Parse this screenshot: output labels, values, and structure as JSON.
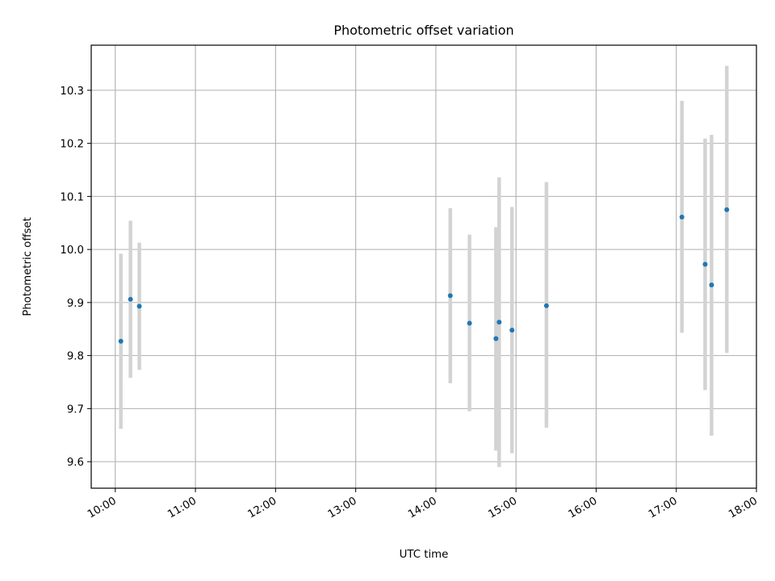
{
  "chart_data": {
    "type": "scatter",
    "title": "Photometric offset variation",
    "xlabel": "UTC time",
    "ylabel": "Photometric offset",
    "x_unit": "hours (UTC)",
    "xlim": [
      9.7,
      18.0
    ],
    "ylim": [
      9.55,
      10.385
    ],
    "grid": true,
    "x_ticks": [
      {
        "value": 10,
        "label": "10:00"
      },
      {
        "value": 11,
        "label": "11:00"
      },
      {
        "value": 12,
        "label": "12:00"
      },
      {
        "value": 13,
        "label": "13:00"
      },
      {
        "value": 14,
        "label": "14:00"
      },
      {
        "value": 15,
        "label": "15:00"
      },
      {
        "value": 16,
        "label": "16:00"
      },
      {
        "value": 17,
        "label": "17:00"
      },
      {
        "value": 18,
        "label": "18:00"
      }
    ],
    "y_ticks": [
      {
        "value": 9.6,
        "label": "9.6"
      },
      {
        "value": 9.7,
        "label": "9.7"
      },
      {
        "value": 9.8,
        "label": "9.8"
      },
      {
        "value": 9.9,
        "label": "9.9"
      },
      {
        "value": 10.0,
        "label": "10.0"
      },
      {
        "value": 10.1,
        "label": "10.1"
      },
      {
        "value": 10.2,
        "label": "10.2"
      },
      {
        "value": 10.3,
        "label": "10.3"
      }
    ],
    "colors": {
      "marker": "#1f77b4",
      "errorbar": "#d3d3d3",
      "grid": "#b0b0b0"
    },
    "points": [
      {
        "x": 10.07,
        "y": 9.827,
        "yerr_low": 9.662,
        "yerr_high": 9.992
      },
      {
        "x": 10.19,
        "y": 9.906,
        "yerr_low": 9.758,
        "yerr_high": 10.054
      },
      {
        "x": 10.3,
        "y": 9.893,
        "yerr_low": 9.773,
        "yerr_high": 10.013
      },
      {
        "x": 14.18,
        "y": 9.913,
        "yerr_low": 9.748,
        "yerr_high": 10.078
      },
      {
        "x": 14.42,
        "y": 9.861,
        "yerr_low": 9.695,
        "yerr_high": 10.028
      },
      {
        "x": 14.75,
        "y": 9.832,
        "yerr_low": 9.621,
        "yerr_high": 10.042
      },
      {
        "x": 14.79,
        "y": 9.863,
        "yerr_low": 9.59,
        "yerr_high": 10.136
      },
      {
        "x": 14.95,
        "y": 9.848,
        "yerr_low": 9.616,
        "yerr_high": 10.08
      },
      {
        "x": 15.38,
        "y": 9.894,
        "yerr_low": 9.664,
        "yerr_high": 10.127
      },
      {
        "x": 17.07,
        "y": 10.061,
        "yerr_low": 9.843,
        "yerr_high": 10.28
      },
      {
        "x": 17.36,
        "y": 9.972,
        "yerr_low": 9.735,
        "yerr_high": 10.209
      },
      {
        "x": 17.44,
        "y": 9.933,
        "yerr_low": 9.649,
        "yerr_high": 10.216
      },
      {
        "x": 17.63,
        "y": 10.075,
        "yerr_low": 9.805,
        "yerr_high": 10.346
      }
    ]
  }
}
